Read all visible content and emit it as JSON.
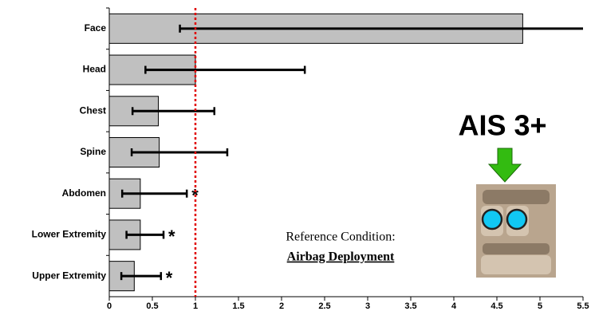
{
  "chart_data": {
    "type": "hbar_error",
    "categories": [
      "Face",
      "Head",
      "Chest",
      "Spine",
      "Abdomen",
      "Lower Extremity",
      "Upper Extremity"
    ],
    "series": [
      {
        "color": "#c0c0c0",
        "values": [
          4.8,
          1.0,
          0.57,
          0.58,
          0.36,
          0.36,
          0.29
        ],
        "error_low": [
          0.82,
          0.42,
          0.27,
          0.26,
          0.15,
          0.2,
          0.14
        ],
        "error_high": [
          5.5,
          2.27,
          1.22,
          1.37,
          0.9,
          0.63,
          0.6
        ]
      }
    ],
    "xlim": [
      0,
      5.5
    ],
    "xticks": [
      0,
      0.5,
      1,
      1.5,
      2,
      2.5,
      3,
      3.5,
      4,
      4.5,
      5,
      5.5
    ],
    "reference_line": {
      "value": 1,
      "color": "#e00000"
    },
    "significance_marks": [
      {
        "index": 4,
        "text": "*"
      },
      {
        "index": 5,
        "text": "*"
      },
      {
        "index": 6,
        "text": "*"
      }
    ],
    "annotations": {
      "reference_label": "Reference Condition:",
      "reference_name": "Airbag Deployment",
      "severity": "AIS 3+"
    }
  }
}
